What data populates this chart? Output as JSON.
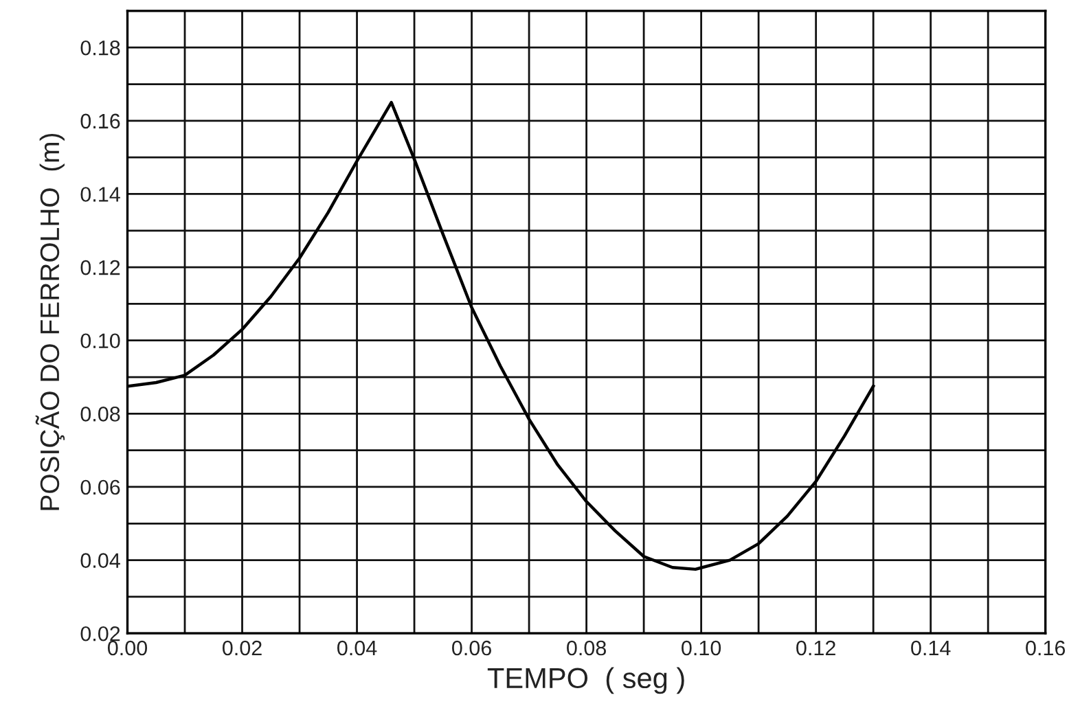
{
  "chart_data": {
    "type": "line",
    "xlabel": "TEMPO  ( seg )",
    "ylabel": "POSIÇÃO DO FERROLHO  (m)",
    "x": [
      0,
      0.005,
      0.01,
      0.015,
      0.02,
      0.025,
      0.03,
      0.035,
      0.04,
      0.043,
      0.046,
      0.05,
      0.055,
      0.06,
      0.065,
      0.07,
      0.075,
      0.08,
      0.085,
      0.09,
      0.095,
      0.099,
      0.105,
      0.11,
      0.115,
      0.12,
      0.125,
      0.13
    ],
    "series": [
      {
        "color": "#000000",
        "values": [
          0.0875,
          0.0885,
          0.0905,
          0.096,
          0.103,
          0.112,
          0.1225,
          0.135,
          0.149,
          0.157,
          0.165,
          0.1495,
          0.129,
          0.109,
          0.093,
          0.0785,
          0.066,
          0.056,
          0.048,
          0.041,
          0.038,
          0.0375,
          0.04,
          0.0445,
          0.052,
          0.0615,
          0.074,
          0.0875
        ]
      }
    ],
    "xlim": [
      0,
      0.16
    ],
    "ylim": [
      0.02,
      0.19
    ],
    "xticks": [
      {
        "value": 0,
        "label": "0.00"
      },
      {
        "value": 0.01,
        "label": null
      },
      {
        "value": 0.02,
        "label": "0.02"
      },
      {
        "value": 0.03,
        "label": null
      },
      {
        "value": 0.04,
        "label": "0.04"
      },
      {
        "value": 0.05,
        "label": null
      },
      {
        "value": 0.06,
        "label": "0.06"
      },
      {
        "value": 0.07,
        "label": null
      },
      {
        "value": 0.08,
        "label": "0.08"
      },
      {
        "value": 0.09,
        "label": null
      },
      {
        "value": 0.1,
        "label": "0.10"
      },
      {
        "value": 0.11,
        "label": null
      },
      {
        "value": 0.12,
        "label": "0.12"
      },
      {
        "value": 0.13,
        "label": null
      },
      {
        "value": 0.14,
        "label": "0.14"
      },
      {
        "value": 0.15,
        "label": null
      },
      {
        "value": 0.16,
        "label": "0.16"
      }
    ],
    "yticks": [
      {
        "value": 0.02,
        "label": "0.02"
      },
      {
        "value": 0.03,
        "label": null
      },
      {
        "value": 0.04,
        "label": "0.04"
      },
      {
        "value": 0.05,
        "label": null
      },
      {
        "value": 0.06,
        "label": "0.06"
      },
      {
        "value": 0.07,
        "label": null
      },
      {
        "value": 0.08,
        "label": "0.08"
      },
      {
        "value": 0.09,
        "label": null
      },
      {
        "value": 0.1,
        "label": "0.10"
      },
      {
        "value": 0.11,
        "label": null
      },
      {
        "value": 0.12,
        "label": "0.12"
      },
      {
        "value": 0.13,
        "label": null
      },
      {
        "value": 0.14,
        "label": "0.14"
      },
      {
        "value": 0.15,
        "label": null
      },
      {
        "value": 0.16,
        "label": "0.16"
      },
      {
        "value": 0.17,
        "label": null
      },
      {
        "value": 0.18,
        "label": "0.18"
      }
    ],
    "grid": true,
    "marker": "none",
    "line_style": "solid"
  }
}
